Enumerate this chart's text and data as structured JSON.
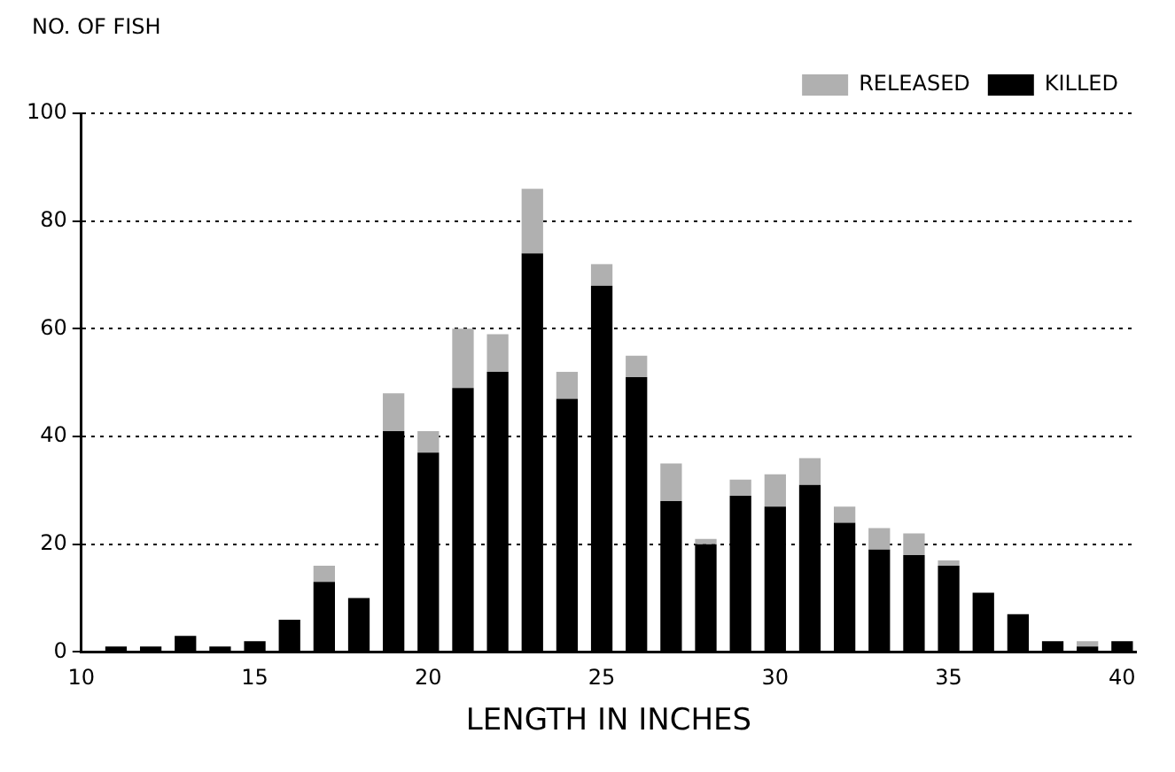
{
  "chart_data": {
    "type": "bar",
    "xlabel": "LENGTH IN INCHES",
    "ylabel": "NO. OF FISH",
    "x": [
      11,
      12,
      13,
      14,
      15,
      16,
      17,
      18,
      19,
      20,
      21,
      22,
      23,
      24,
      25,
      26,
      27,
      28,
      29,
      30,
      31,
      32,
      33,
      34,
      35,
      36,
      37,
      38,
      39,
      40
    ],
    "series": [
      {
        "name": "KILLED",
        "color": "#000000",
        "values": [
          1,
          1,
          3,
          1,
          2,
          6,
          13,
          10,
          41,
          37,
          49,
          52,
          74,
          47,
          68,
          51,
          28,
          20,
          29,
          27,
          31,
          24,
          19,
          18,
          16,
          11,
          7,
          2,
          1,
          2
        ]
      },
      {
        "name": "RELEASED",
        "color": "#b0b0b0",
        "values": [
          0,
          0,
          0,
          0,
          0,
          0,
          3,
          0,
          7,
          4,
          11,
          7,
          12,
          5,
          4,
          4,
          7,
          1,
          3,
          6,
          5,
          3,
          4,
          4,
          1,
          0,
          0,
          0,
          1,
          0
        ]
      }
    ],
    "stacked": true,
    "xlim": [
      10,
      40.4
    ],
    "xticks": [
      10,
      15,
      20,
      25,
      30,
      35,
      40
    ],
    "ylim": [
      0,
      100
    ],
    "yticks": [
      0,
      20,
      40,
      60,
      80,
      100
    ],
    "grid": "y",
    "legend": "top right"
  }
}
